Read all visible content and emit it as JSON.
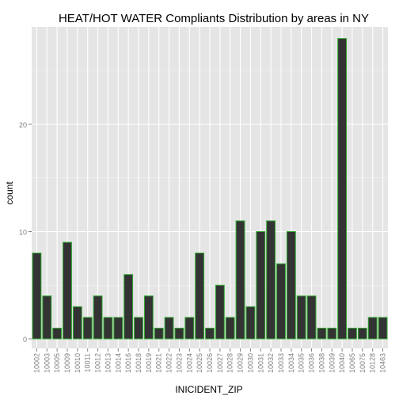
{
  "chart_data": {
    "type": "bar",
    "title": "HEAT/HOT WATER Compliants Distribution by areas in NY",
    "xlabel": "INICIDENT_ZIP",
    "ylabel": "count",
    "categories": [
      "10002",
      "10003",
      "10005",
      "10009",
      "10010",
      "10011",
      "10012",
      "10013",
      "10014",
      "10016",
      "10018",
      "10019",
      "10021",
      "10022",
      "10023",
      "10024",
      "10025",
      "10026",
      "10027",
      "10028",
      "10029",
      "10030",
      "10031",
      "10032",
      "10033",
      "10034",
      "10035",
      "10036",
      "10038",
      "10039",
      "10040",
      "10065",
      "10075",
      "10128",
      "10463"
    ],
    "values": [
      8,
      4,
      1,
      9,
      3,
      2,
      4,
      2,
      2,
      6,
      2,
      4,
      1,
      2,
      1,
      2,
      8,
      1,
      5,
      2,
      11,
      3,
      10,
      11,
      7,
      10,
      4,
      4,
      1,
      1,
      28,
      1,
      1,
      2,
      2
    ],
    "yticks": [
      0,
      10,
      20
    ],
    "ylim": [
      0,
      30
    ],
    "grid": true,
    "colors": {
      "panel": "#e5e5e5",
      "grid_major": "#ffffff",
      "grid_minor": "#f2f2f2",
      "bar_fill": "#333333",
      "bar_stroke": "#33aa33",
      "axis_text": "#7f7f7f"
    }
  }
}
